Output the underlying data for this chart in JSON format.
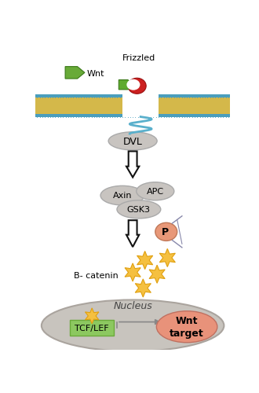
{
  "bg_color": "#ffffff",
  "membrane_color_outer": "#4a9ebd",
  "membrane_color_inner": "#d4b84a",
  "wnt_label": "Wnt",
  "frizzled_label": "Frizzled",
  "dvl_label": "DVL",
  "axin_label": "Axin",
  "apc_label": "APC",
  "gsk3_label": "GSK3",
  "p_label": "P",
  "bcatenin_label": "B- catenin",
  "nucleus_label": "Nucleus",
  "tcflef_label": "TCF/LEF",
  "wnt_target_label": "Wnt\ntarget",
  "gray_ellipse_color": "#c8c4c0",
  "gray_ellipse_edge": "#aaaaaa",
  "wnt_target_color": "#e8927a",
  "tcflef_color": "#8cc860",
  "tcflef_edge": "#6aaa3a",
  "star_color": "#f5c040",
  "star_edge": "#e0a010",
  "p_circle_color": "#e89878",
  "p_circle_edge": "#c07858",
  "nucleus_color": "#c8c4be",
  "nucleus_edge": "#aaa49e",
  "frizzled_red_color": "#cc2020",
  "frizzled_green_color": "#60aa30",
  "wnt_green_color": "#68aa38",
  "wave_color": "#5ab0cc",
  "arrow_hollow_fc": "#ffffff",
  "arrow_hollow_ec": "#111111"
}
